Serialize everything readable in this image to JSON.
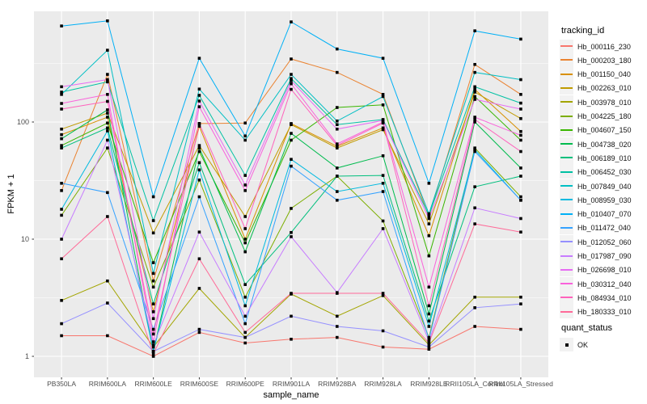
{
  "chart_data": {
    "type": "line",
    "title": "",
    "xlabel": "sample_name",
    "ylabel": "FPKM + 1",
    "y_scale": "log10",
    "ylim_log": [
      0.92,
      880
    ],
    "y_major_ticks": [
      1,
      10,
      100
    ],
    "y_tick_labels": [
      "1",
      "10",
      "100"
    ],
    "y_minor_ticks": [
      3.162,
      31.62,
      316.2
    ],
    "grid": "on",
    "panel_bg": "#EBEBEB",
    "grid_color": "#FFFFFF",
    "tick_label_color": "#4D4D4D",
    "point_color": "#000000",
    "legend_position": "right",
    "legend_title": "tracking_id",
    "categories": [
      "PB350LA",
      "RRIM600LA",
      "RRIM600LE",
      "RRIM600SE",
      "RRIM600PE",
      "RRIM901LA",
      "RRIM928BA",
      "RRIM928LA",
      "RRIM928LE",
      "RRII105LA_Control",
      "RRII105LA_Stressed"
    ],
    "series": [
      {
        "name": "Hb_000116_230",
        "color": "#F8766D",
        "values": [
          1.5,
          1.5,
          1.0,
          1.6,
          1.3,
          1.4,
          1.45,
          1.2,
          1.15,
          1.8,
          1.7
        ]
      },
      {
        "name": "Hb_000203_180",
        "color": "#EA8331",
        "values": [
          26,
          255,
          4.4,
          97,
          98,
          345,
          265,
          172,
          15.5,
          310,
          172
        ]
      },
      {
        "name": "Hb_001150_040",
        "color": "#D89000",
        "values": [
          78,
          110,
          2.4,
          92,
          10,
          97,
          62,
          89,
          10.7,
          190,
          83
        ]
      },
      {
        "name": "Hb_002263_010",
        "color": "#C09B00",
        "values": [
          87,
          119,
          11.3,
          63,
          15.6,
          95,
          60,
          86,
          13.5,
          180,
          107
        ]
      },
      {
        "name": "Hb_003978_010",
        "color": "#A3A500",
        "values": [
          3.0,
          4.4,
          1.2,
          3.8,
          1.45,
          3.4,
          2.2,
          3.3,
          1.25,
          3.2,
          3.2
        ]
      },
      {
        "name": "Hb_004225_180",
        "color": "#7CAE00",
        "values": [
          16,
          60,
          3.9,
          32,
          3.2,
          18.3,
          34.5,
          14.3,
          1.45,
          60,
          23
        ]
      },
      {
        "name": "Hb_004607_150",
        "color": "#39B600",
        "values": [
          63,
          98,
          6.3,
          56,
          9.3,
          70,
          133,
          140,
          7.2,
          165,
          70
        ]
      },
      {
        "name": "Hb_004738_020",
        "color": "#00BB4E",
        "values": [
          72,
          127,
          1.1,
          60,
          7.8,
          80,
          40.5,
          51.5,
          2.3,
          100,
          40.5
        ]
      },
      {
        "name": "Hb_006189_010",
        "color": "#00BF7D",
        "values": [
          60,
          89,
          2.8,
          45,
          4.1,
          11.4,
          34.5,
          35,
          2.0,
          28,
          34.5
        ]
      },
      {
        "name": "Hb_006452_030",
        "color": "#00C1A3",
        "values": [
          180,
          220,
          14.4,
          169,
          35,
          235,
          95,
          105,
          16,
          200,
          145
        ]
      },
      {
        "name": "Hb_007849_040",
        "color": "#00BFC4",
        "values": [
          172,
          410,
          5.1,
          191,
          70,
          255,
          102,
          165,
          16.5,
          265,
          230
        ]
      },
      {
        "name": "Hb_008959_030",
        "color": "#00BAE0",
        "values": [
          18,
          84,
          1.1,
          39,
          2.7,
          48,
          25.5,
          30,
          1.8,
          58,
          21.5
        ]
      },
      {
        "name": "Hb_010407_070",
        "color": "#00B0F6",
        "values": [
          660,
          730,
          23,
          350,
          76,
          715,
          420,
          350,
          30,
          600,
          510
        ]
      },
      {
        "name": "Hb_011472_040",
        "color": "#35A2FF",
        "values": [
          30,
          25,
          1.7,
          23,
          1.9,
          42,
          21.5,
          25.5,
          1.4,
          56,
          21.5
        ]
      },
      {
        "name": "Hb_012052_060",
        "color": "#9590FF",
        "values": [
          1.9,
          2.85,
          1.1,
          1.7,
          1.45,
          2.2,
          1.8,
          1.65,
          1.2,
          2.6,
          2.8
        ]
      },
      {
        "name": "Hb_017987_090",
        "color": "#C77CFF",
        "values": [
          10,
          70,
          1.25,
          11.5,
          2.2,
          10.5,
          3.5,
          12.3,
          1.35,
          18.5,
          15
        ]
      },
      {
        "name": "Hb_026698_010",
        "color": "#E76BF3",
        "values": [
          200,
          230,
          2.1,
          151,
          29,
          225,
          87,
          103,
          15,
          156,
          129
        ]
      },
      {
        "name": "Hb_030312_040",
        "color": "#FA62DB",
        "values": [
          144,
          172,
          1.33,
          135,
          26,
          212,
          65,
          100,
          3.9,
          110,
          77
        ]
      },
      {
        "name": "Hb_084934_010",
        "color": "#FF62BC",
        "values": [
          129,
          150,
          1.55,
          97,
          12.3,
          190,
          63,
          98,
          2.7,
          105,
          56
        ]
      },
      {
        "name": "Hb_180333_010",
        "color": "#FF6A98",
        "values": [
          6.8,
          15.6,
          1.05,
          6.8,
          1.6,
          3.45,
          3.45,
          3.45,
          1.3,
          13.5,
          11.5
        ]
      }
    ],
    "quant_legend": {
      "title": "quant_status",
      "entries": [
        {
          "label": "OK",
          "shape": "filled-square",
          "color": "#000000"
        }
      ]
    }
  }
}
